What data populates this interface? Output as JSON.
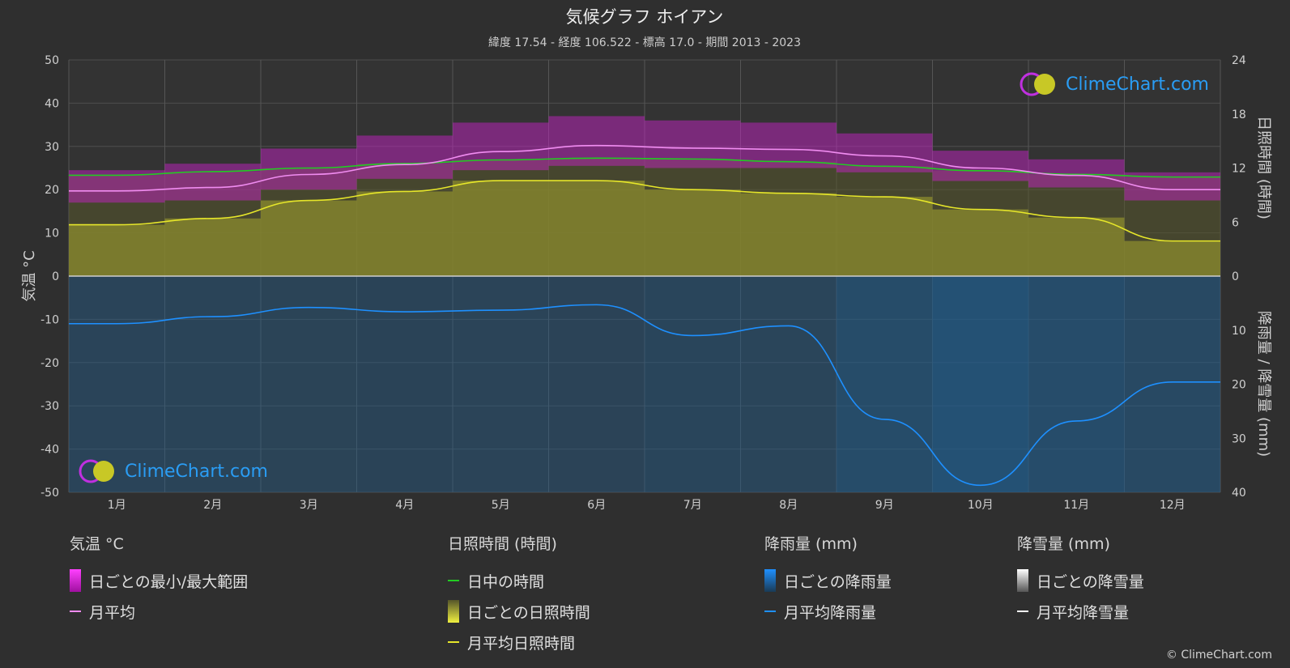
{
  "header": {
    "title": "気候グラフ ホイアン",
    "subtitle": "緯度 17.54 - 経度 106.522 - 標高 17.0 - 期間 2013 - 2023"
  },
  "axes": {
    "left_title": "気温 °C",
    "right_top_title": "日照時間 (時間)",
    "right_bottom_title": "降雨量 / 降雪量 (mm)"
  },
  "legend": {
    "temp": {
      "heading": "気温 °C",
      "range_label": "日ごとの最小/最大範囲",
      "mean_label": "月平均"
    },
    "sun": {
      "heading": "日照時間 (時間)",
      "daylight_label": "日中の時間",
      "daily_label": "日ごとの日照時間",
      "mean_label": "月平均日照時間"
    },
    "rain": {
      "heading": "降雨量 (mm)",
      "daily_label": "日ごとの降雨量",
      "mean_label": "月平均降雨量"
    },
    "snow": {
      "heading": "降雪量 (mm)",
      "daily_label": "日ごとの降雪量",
      "mean_label": "月平均降雪量"
    }
  },
  "branding": {
    "logo_text": "ClimeChart.com",
    "copyright": "© ClimeChart.com"
  },
  "colors": {
    "background": "#2f2f2f",
    "temp_range": "#d020d0",
    "temp_mean": "#f08cf0",
    "daylight": "#22cc22",
    "sunshine_fill": "#8c8c2e",
    "sunshine_mean": "#e6e62a",
    "rain_fill": "#1f5c8c",
    "rain_mean": "#1e90ff",
    "snow_mean": "#ffffff"
  },
  "chart_data": {
    "type": "line",
    "categories": [
      "1月",
      "2月",
      "3月",
      "4月",
      "5月",
      "6月",
      "7月",
      "8月",
      "9月",
      "10月",
      "11月",
      "12月"
    ],
    "temperature_axis": {
      "ylim": [
        -50,
        50
      ],
      "ticks": [
        50,
        40,
        30,
        20,
        10,
        0,
        -10,
        -20,
        -30,
        -40,
        -50
      ]
    },
    "sunshine_axis": {
      "ylim": [
        0,
        24
      ],
      "ticks": [
        24,
        18,
        12,
        6,
        0
      ]
    },
    "precip_axis": {
      "ylim": [
        0,
        40
      ],
      "ticks": [
        0,
        10,
        20,
        30,
        40
      ]
    },
    "series": [
      {
        "name": "月平均",
        "axis": "temperature",
        "values": [
          19.7,
          20.5,
          23.5,
          25.8,
          28.8,
          30.2,
          29.6,
          29.3,
          27.8,
          25.0,
          23.3,
          20.0
        ]
      },
      {
        "name": "日ごとの最小/最大範囲",
        "axis": "temperature",
        "min": [
          17.0,
          17.5,
          20.0,
          22.5,
          24.5,
          25.5,
          25.0,
          25.0,
          24.0,
          22.0,
          20.5,
          17.5
        ],
        "max": [
          24.5,
          26.0,
          29.5,
          32.5,
          35.5,
          37.0,
          36.0,
          35.5,
          33.0,
          29.0,
          27.0,
          24.0
        ]
      },
      {
        "name": "日中の時間",
        "axis": "sunshine",
        "values": [
          11.2,
          11.6,
          12.0,
          12.5,
          12.9,
          13.1,
          13.0,
          12.7,
          12.2,
          11.7,
          11.3,
          11.0
        ]
      },
      {
        "name": "月平均日照時間",
        "axis": "sunshine",
        "values": [
          5.7,
          6.4,
          8.4,
          9.4,
          10.6,
          10.6,
          9.6,
          9.2,
          8.8,
          7.4,
          6.5,
          3.9
        ]
      },
      {
        "name": "月平均降雨量",
        "axis": "precipitation",
        "values": [
          8.8,
          7.5,
          5.8,
          6.6,
          6.3,
          5.3,
          11.0,
          9.2,
          26.5,
          38.7,
          26.8,
          19.6
        ]
      },
      {
        "name": "月平均降雪量",
        "axis": "precipitation",
        "values": [
          0,
          0,
          0,
          0,
          0,
          0,
          0,
          0,
          0,
          0,
          0,
          0
        ]
      }
    ]
  }
}
